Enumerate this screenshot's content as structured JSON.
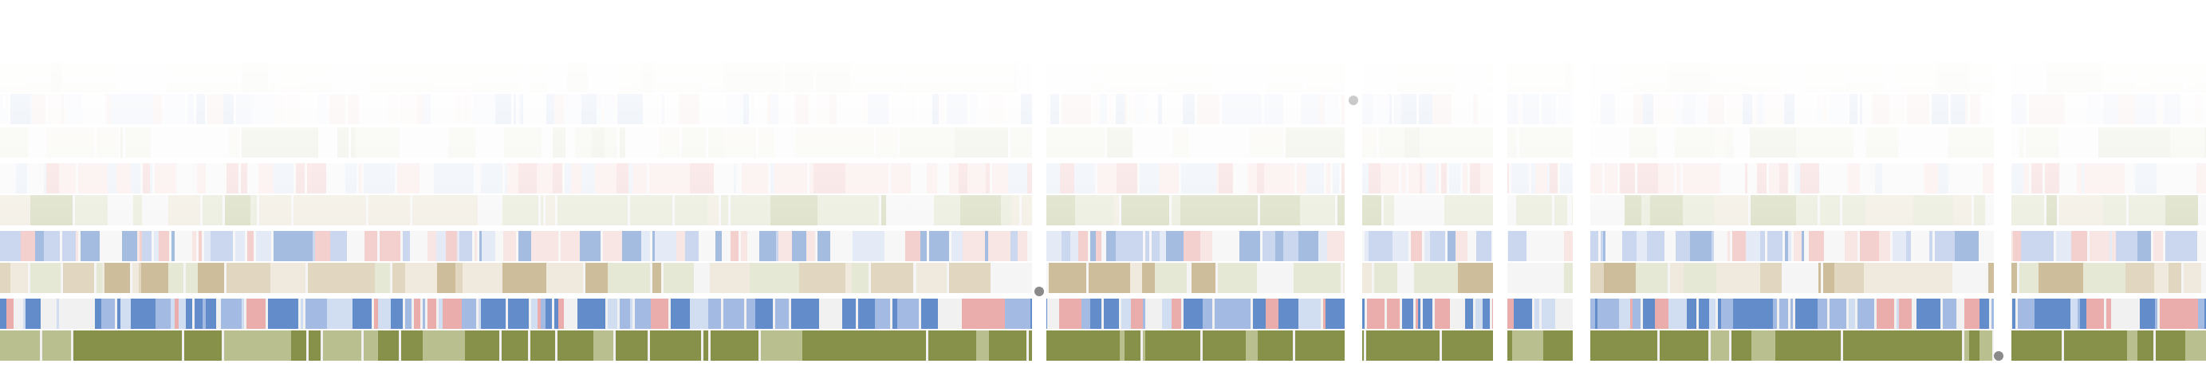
{
  "view": {
    "background": "#ffffff",
    "fade_color": "#ffffff"
  },
  "colors": {
    "blue_strong": "#5b86c8",
    "blue_mid": "#9fb8e2",
    "blue_light": "#cfdcf1",
    "red_strong": "#d9726f",
    "red_mid": "#eaa9a7",
    "red_light": "#f4d2d1",
    "neutral": "#f1f1f1",
    "olive_strong": "#87914a",
    "olive_mid": "#b9bf8e",
    "olive_light": "#d8dcc0",
    "tan_strong": "#b39b67",
    "tan_mid": "#d2c3a0",
    "tan_light": "#e8dfcb",
    "boundary_marker": "#8a8a8a"
  },
  "tracks": [
    {
      "id": "track-1",
      "kind": "olive",
      "opacity": 0.1
    },
    {
      "id": "track-2",
      "kind": "bluered",
      "opacity": 0.14
    },
    {
      "id": "track-3",
      "kind": "olive",
      "opacity": 0.18
    },
    {
      "id": "track-4",
      "kind": "bluered-red",
      "opacity": 0.3
    },
    {
      "id": "track-5",
      "kind": "olive",
      "opacity": 0.45
    },
    {
      "id": "track-6",
      "kind": "bluered",
      "opacity": 0.55
    },
    {
      "id": "track-7",
      "kind": "tan",
      "opacity": 0.65
    },
    {
      "id": "track-8",
      "kind": "bluered-blue",
      "opacity": 0.95
    },
    {
      "id": "track-9",
      "kind": "olive-dark",
      "opacity": 1.0
    }
  ],
  "regions": [
    {
      "id": "region-1"
    },
    {
      "id": "region-2"
    },
    {
      "id": "region-3"
    },
    {
      "id": "region-4"
    },
    {
      "id": "region-5"
    },
    {
      "id": "region-6"
    }
  ],
  "boundary_markers": [
    {
      "id": "marker-1"
    },
    {
      "id": "marker-2"
    },
    {
      "id": "marker-3"
    }
  ]
}
